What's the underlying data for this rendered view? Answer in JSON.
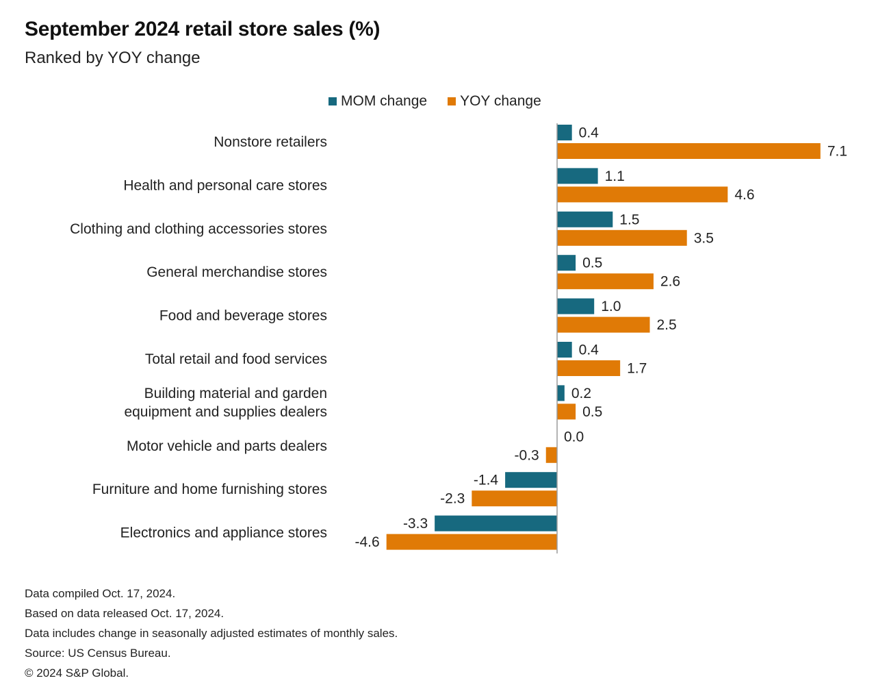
{
  "colors": {
    "mom": "#17697f",
    "yoy": "#e07a06",
    "axis": "#9a9a9a"
  },
  "legend": {
    "mom_label": "MOM change",
    "yoy_label": "YOY change"
  },
  "footnotes": [
    "Data compiled Oct. 17, 2024.",
    "Based on data released Oct. 17, 2024.",
    "Data includes change in seasonally adjusted estimates of monthly sales.",
    "Source: US Census Bureau.",
    "© 2024 S&P Global."
  ],
  "chart_data": {
    "type": "bar",
    "orientation": "horizontal",
    "title": "September 2024 retail store sales (%)",
    "subtitle": "Ranked by YOY change",
    "categories": [
      [
        "Nonstore retailers"
      ],
      [
        "Health and personal care stores"
      ],
      [
        "Clothing and clothing accessories stores"
      ],
      [
        "General merchandise stores"
      ],
      [
        "Food and beverage stores"
      ],
      [
        "Total retail and food services"
      ],
      [
        "Building material and garden",
        "equipment and supplies dealers"
      ],
      [
        "Motor vehicle and parts dealers"
      ],
      [
        "Furniture and home furnishing stores"
      ],
      [
        "Electronics and appliance stores"
      ]
    ],
    "series": [
      {
        "name": "MOM change",
        "values": [
          0.4,
          1.1,
          1.5,
          0.5,
          1.0,
          0.4,
          0.2,
          0.0,
          -1.4,
          -3.3
        ],
        "labels": [
          "0.4",
          "1.1",
          "1.5",
          "0.5",
          "1.0",
          "0.4",
          "0.2",
          "0.0",
          "-1.4",
          "-3.3"
        ]
      },
      {
        "name": "YOY change",
        "values": [
          7.1,
          4.6,
          3.5,
          2.6,
          2.5,
          1.7,
          0.5,
          -0.3,
          -2.3,
          -4.6
        ],
        "labels": [
          "7.1",
          "4.6",
          "3.5",
          "2.6",
          "2.5",
          "1.7",
          "0.5",
          "-0.3",
          "-2.3",
          "-4.6"
        ]
      }
    ],
    "xlim": [
      -4.6,
      7.1
    ],
    "grid": false,
    "legend_position": "top"
  }
}
